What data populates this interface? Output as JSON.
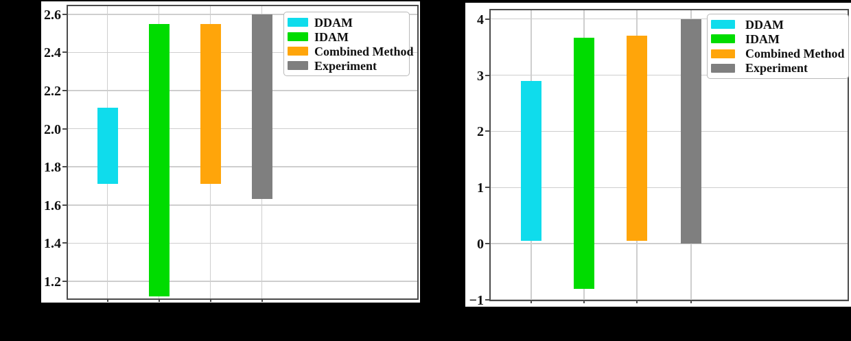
{
  "page": {
    "background_color": "#000000",
    "panel_background_color": "#ffffff",
    "note_labels": {
      "x_axis_text_visible": false,
      "axis_title_text_visible": false
    }
  },
  "styles": {
    "grid_color": "#cecece",
    "spine_color": "#4a4a4a",
    "text_color": "#101010",
    "legend_border_color": "#b9b9b9"
  },
  "chart_data": [
    {
      "type": "bar",
      "subtype": "floating-range-bars",
      "title": "",
      "grid": true,
      "legend_position": "upper right",
      "legend_entries": [
        "DDAM",
        "IDAM",
        "Combined Method",
        "Experiment"
      ],
      "ylim": [
        1.11,
        2.65
      ],
      "yticks": [
        {
          "label": "2.6",
          "value": 2.6
        },
        {
          "label": "2.4",
          "value": 2.4
        },
        {
          "label": "2.2",
          "value": 2.2
        },
        {
          "label": "2.0",
          "value": 2.0
        },
        {
          "label": "1.8",
          "value": 1.8
        },
        {
          "label": "1.6",
          "value": 1.6
        },
        {
          "label": "1.4",
          "value": 1.4
        },
        {
          "label": "1.2",
          "value": 1.2
        }
      ],
      "series": [
        {
          "name": "DDAM",
          "color": "#0fdcec",
          "low": 1.71,
          "high": 2.11
        },
        {
          "name": "IDAM",
          "color": "#00dc00",
          "low": 1.12,
          "high": 2.55
        },
        {
          "name": "Combined Method",
          "color": "#ffa50a",
          "low": 1.71,
          "high": 2.55
        },
        {
          "name": "Experiment",
          "color": "#7f7f7f",
          "low": 1.63,
          "high": 2.6
        }
      ]
    },
    {
      "type": "bar",
      "subtype": "floating-range-bars",
      "title": "",
      "grid": true,
      "legend_position": "upper right",
      "legend_entries": [
        "DDAM",
        "IDAM",
        "Combined Method",
        "Experiment"
      ],
      "ylim": [
        -1,
        4.18
      ],
      "yticks": [
        {
          "label": "4",
          "value": 4
        },
        {
          "label": "3",
          "value": 3
        },
        {
          "label": "2",
          "value": 2
        },
        {
          "label": "1",
          "value": 1
        },
        {
          "label": "0",
          "value": 0
        },
        {
          "label": "−1",
          "value": -1
        }
      ],
      "series": [
        {
          "name": "DDAM",
          "color": "#0fdcec",
          "low": 0.05,
          "high": 2.9
        },
        {
          "name": "IDAM",
          "color": "#00dc00",
          "low": -0.8,
          "high": 3.67
        },
        {
          "name": "Combined Method",
          "color": "#ffa50a",
          "low": 0.05,
          "high": 3.7
        },
        {
          "name": "Experiment",
          "color": "#7f7f7f",
          "low": 0.0,
          "high": 4.0
        }
      ]
    }
  ]
}
